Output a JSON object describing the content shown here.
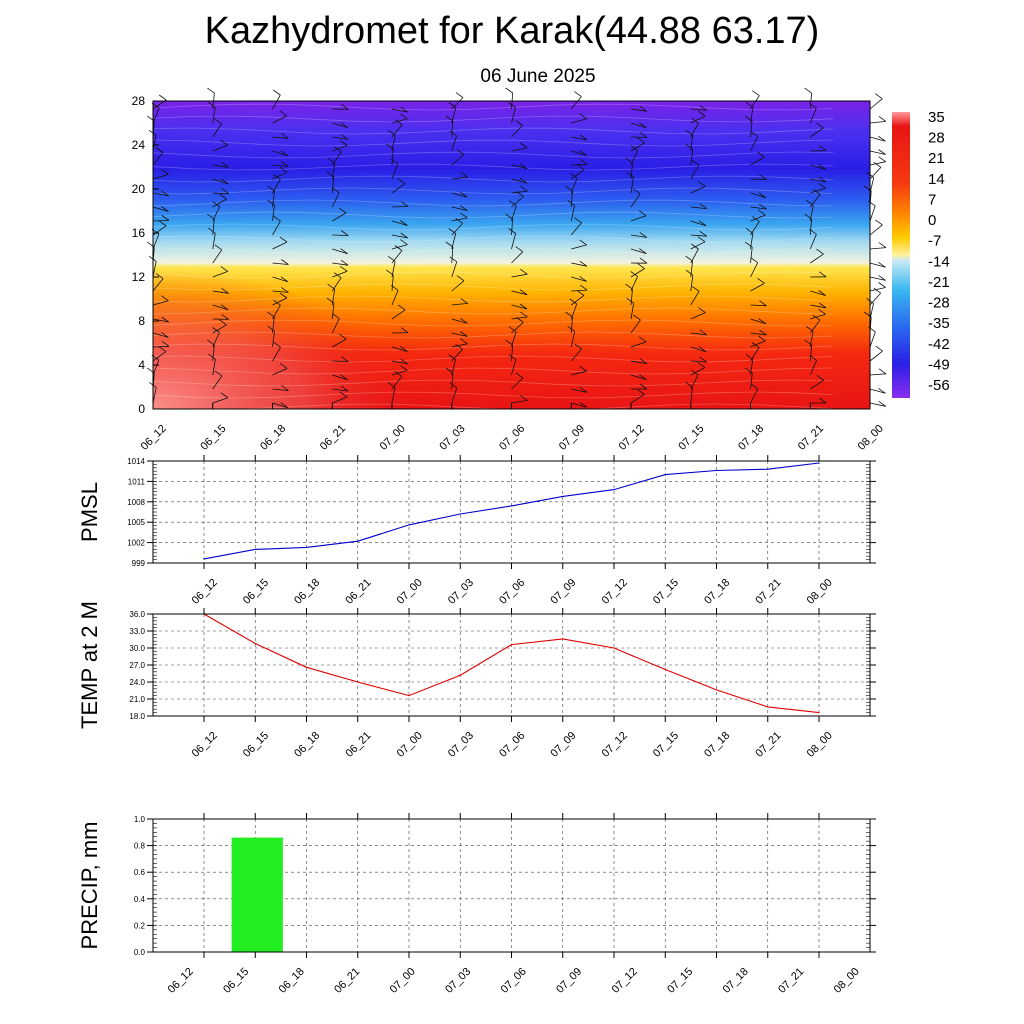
{
  "header": {
    "title": "Kazhydromet for Karak(44.88 63.17)",
    "subtitle": "06 June 2025"
  },
  "colors": {
    "pmsl_line": "#0000cc",
    "temp_line": "#e00000",
    "precip_bar": "#22ee22"
  },
  "chart_data": [
    {
      "type": "heatmap",
      "title": "",
      "x_ticks": [
        "06_12",
        "06_15",
        "06_18",
        "06_21",
        "07_00",
        "07_03",
        "07_06",
        "07_09",
        "07_12",
        "07_15",
        "07_18",
        "07_21",
        "08_00"
      ],
      "y_ticks": [
        0,
        4,
        8,
        12,
        16,
        20,
        24,
        28
      ],
      "ylim": [
        0,
        28
      ],
      "colorbar_labels": [
        "35",
        "28",
        "21",
        "14",
        "7",
        "0",
        "-7",
        "-14",
        "-21",
        "-28",
        "-35",
        "-42",
        "-49",
        "-56"
      ],
      "levels": [
        28,
        24,
        20,
        16,
        12,
        8,
        4,
        0
      ],
      "level_values": [
        -48,
        -50,
        -54,
        -35,
        -12,
        14,
        22,
        27
      ],
      "overlay": "wind barbs"
    },
    {
      "type": "line",
      "ylabel": "PMSL",
      "x": [
        "06_12",
        "06_15",
        "06_18",
        "06_21",
        "07_00",
        "07_03",
        "07_06",
        "07_09",
        "07_12",
        "07_15",
        "07_18",
        "07_21",
        "08_00"
      ],
      "values": [
        999.6,
        1001.0,
        1001.3,
        1002.2,
        1004.6,
        1006.2,
        1007.4,
        1008.8,
        1009.8,
        1012.0,
        1012.6,
        1012.8,
        1013.7
      ],
      "ylim": [
        999,
        1014
      ],
      "y_ticks": [
        "1014",
        "1011",
        "1008",
        "1005",
        "1002",
        "999"
      ],
      "y_tick_values": [
        1014,
        1011,
        1008,
        1005,
        1002,
        999
      ],
      "grid": true
    },
    {
      "type": "line",
      "ylabel": "TEMP at 2 M",
      "x": [
        "06_12",
        "06_15",
        "06_18",
        "06_21",
        "07_00",
        "07_03",
        "07_06",
        "07_09",
        "07_12",
        "07_15",
        "07_18",
        "07_21",
        "08_00"
      ],
      "values": [
        36.0,
        30.8,
        26.6,
        24.0,
        21.6,
        25.2,
        30.6,
        31.6,
        30.0,
        26.2,
        22.6,
        19.6,
        18.6
      ],
      "ylim": [
        18,
        36
      ],
      "y_ticks": [
        "36.0",
        "33.0",
        "30.0",
        "27.0",
        "24.0",
        "21.0",
        "18.0"
      ],
      "y_tick_values": [
        36,
        33,
        30,
        27,
        24,
        21,
        18
      ],
      "grid": true
    },
    {
      "type": "bar",
      "ylabel": "PRECIP, mm",
      "x": [
        "06_12",
        "06_15",
        "06_18",
        "06_21",
        "07_00",
        "07_03",
        "07_06",
        "07_09",
        "07_12",
        "07_15",
        "07_18",
        "07_21",
        "08_00"
      ],
      "values": [
        0,
        0.86,
        0,
        0,
        0,
        0,
        0,
        0,
        0,
        0,
        0,
        0,
        0
      ],
      "ylim": [
        0,
        1.0
      ],
      "y_ticks": [
        "1.0",
        "0.8",
        "0.6",
        "0.4",
        "0.2",
        "0.0"
      ],
      "y_tick_values": [
        1.0,
        0.8,
        0.6,
        0.4,
        0.2,
        0.0
      ],
      "grid": true
    }
  ]
}
